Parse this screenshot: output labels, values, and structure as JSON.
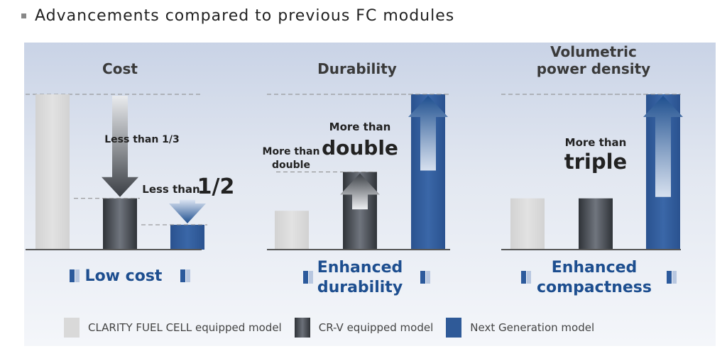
{
  "heading": "Advancements compared to previous FC modules",
  "colors": {
    "clarity": "#d9d9d9",
    "crv": "#4a4e55",
    "next": "#2f5a98",
    "text_dark": "#333333",
    "accent_blue": "#1d4e8f",
    "arrow_blue": "#1e4f8f"
  },
  "legend": [
    {
      "label": "CLARITY FUEL CELL equipped model",
      "color_key": "clarity"
    },
    {
      "label": "CR-V equipped model",
      "color_key": "crv"
    },
    {
      "label": "Next Generation model",
      "color_key": "next"
    }
  ],
  "chart_data": [
    {
      "type": "bar",
      "title": "Cost",
      "categories": [
        "CLARITY FUEL CELL equipped model",
        "CR-V equipped model",
        "Next Generation model"
      ],
      "values": [
        1,
        0.33,
        0.16
      ],
      "annotations": [
        {
          "text_lines": [
            "Less than 1/3"
          ],
          "from": "CLARITY FUEL CELL equipped model",
          "to": "CR-V equipped model",
          "direction": "down"
        },
        {
          "text_lines": [
            "Less than",
            "1/2"
          ],
          "from": "CR-V equipped model",
          "to": "Next Generation model",
          "direction": "down"
        }
      ],
      "benefit": [
        "Low cost"
      ]
    },
    {
      "type": "bar",
      "title": "Durability",
      "categories": [
        "CLARITY FUEL CELL equipped model",
        "CR-V equipped model",
        "Next Generation model"
      ],
      "values": [
        0.25,
        0.5,
        1
      ],
      "annotations": [
        {
          "text_lines": [
            "More than",
            "double"
          ],
          "from": "CLARITY FUEL CELL equipped model",
          "to": "CR-V equipped model",
          "direction": "up"
        },
        {
          "text_lines": [
            "More than",
            "double"
          ],
          "from": "CR-V equipped model",
          "to": "Next Generation model",
          "direction": "up"
        }
      ],
      "benefit": [
        "Enhanced",
        "durability"
      ]
    },
    {
      "type": "bar",
      "title": "Volumetric power density",
      "title_lines": [
        "Volumetric",
        "power density"
      ],
      "categories": [
        "CLARITY FUEL CELL equipped model",
        "CR-V equipped model",
        "Next Generation model"
      ],
      "values": [
        0.33,
        0.33,
        1
      ],
      "annotations": [
        {
          "text_lines": [
            "More than",
            "triple"
          ],
          "from": "CR-V equipped model",
          "to": "Next Generation model",
          "direction": "up"
        }
      ],
      "benefit": [
        "Enhanced",
        "compactness"
      ]
    }
  ]
}
